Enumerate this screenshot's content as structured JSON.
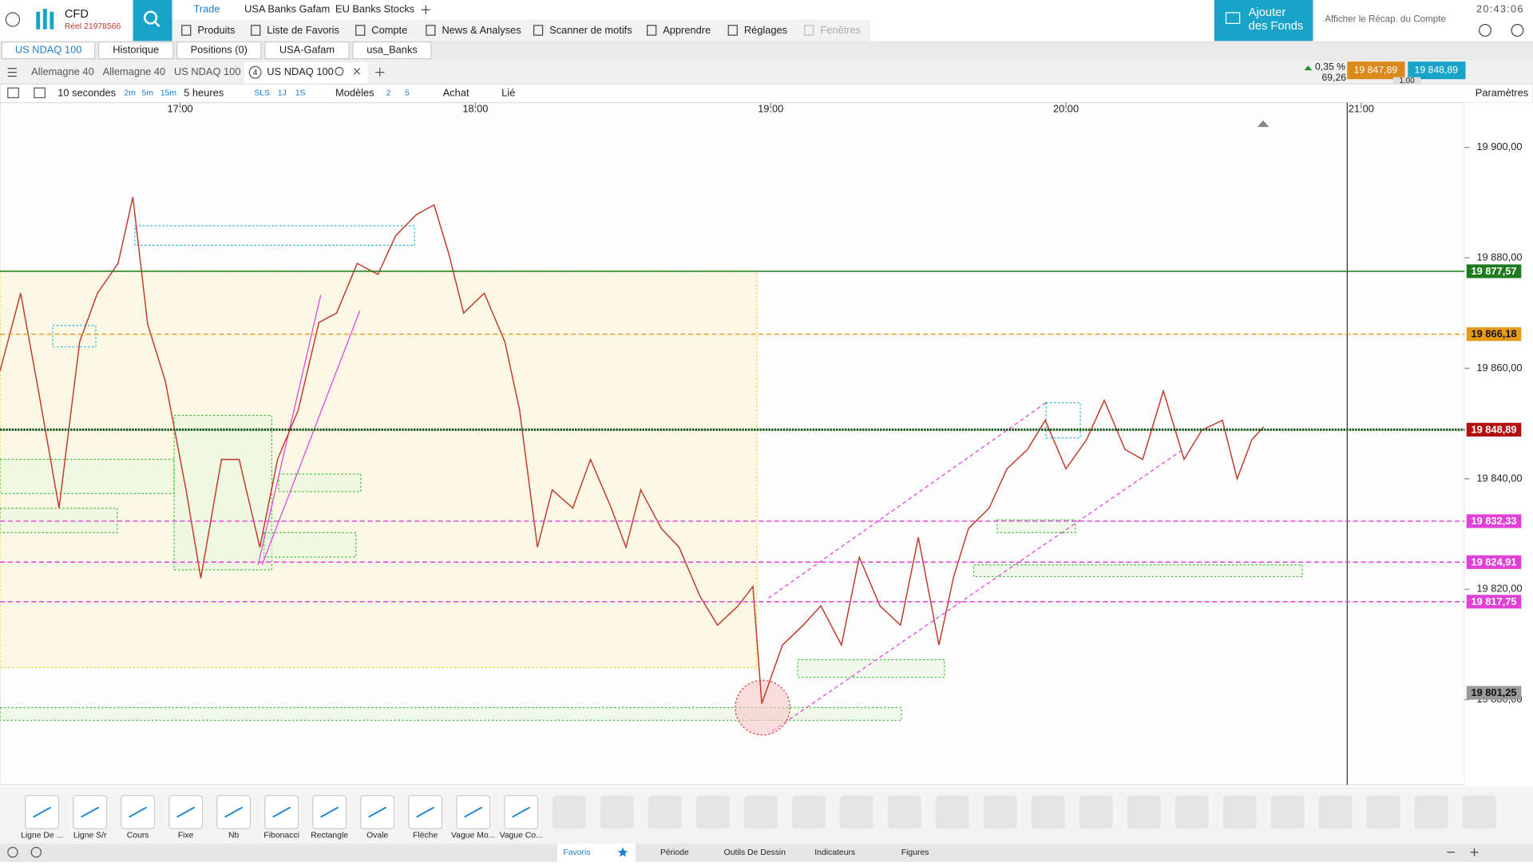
{
  "header": {
    "account_type": "CFD",
    "account_id": "Réel 21978566",
    "top_tabs": [
      "Trade",
      "USA Banks Gafam",
      "EU Banks Stocks"
    ],
    "menu": [
      "Produits",
      "Liste de Favoris",
      "Compte",
      "News & Analyses",
      "Scanner de motifs",
      "Apprendre",
      "Réglages",
      "Fenêtres"
    ],
    "add_funds": [
      "Ajouter",
      "des Fonds"
    ],
    "summary": "Afficher le Récap. du Compte",
    "time": "20:43:06"
  },
  "tabs": [
    "US NDAQ 100",
    "Historique",
    "Positions (0)",
    "USA-Gafam",
    "usa_Banks"
  ],
  "chart_tabs": [
    "Allemagne 40",
    "Allemagne 40",
    "US NDAQ 100"
  ],
  "active_tab": {
    "badge": "4",
    "label": "US NDAQ 100"
  },
  "quote": {
    "change": "0,35 %",
    "points": "69,26",
    "bid": "19 847,89",
    "ask": "19 848,89",
    "size": "1,00"
  },
  "toolbar": [
    "10 secondes",
    "2m",
    "5m",
    "15m",
    "5 heures",
    "SLS",
    "1J",
    "1S",
    "Modèles",
    "2",
    "5",
    "Achat",
    "Lié",
    "Paramètres"
  ],
  "draw_tools": [
    "Ligne De ...",
    "Ligne S/r",
    "Cours",
    "Fixe",
    "Nb",
    "Fibonacci",
    "Rectangle",
    "Ovale",
    "Flèche",
    "Vague Mo...",
    "Vague Co..."
  ],
  "bottom_tabs": [
    "Favoris",
    "Période",
    "Outils De Dessin",
    "Indicateurs",
    "Figures"
  ],
  "chart_data": {
    "type": "line",
    "color": "#c0392b",
    "x": [
      16.39,
      16.46,
      16.52,
      16.59,
      16.66,
      16.72,
      16.79,
      16.84,
      16.89,
      16.95,
      17.02,
      17.07,
      17.14,
      17.2,
      17.27,
      17.33,
      17.4,
      17.47,
      17.53,
      17.6,
      17.67,
      17.73,
      17.8,
      17.86,
      17.91,
      17.96,
      18.03,
      18.1,
      18.15,
      18.21,
      18.26,
      18.33,
      18.39,
      18.46,
      18.51,
      18.56,
      18.63,
      18.69,
      18.76,
      18.82,
      18.89,
      18.94,
      18.97,
      19.04,
      19.11,
      19.17,
      19.24,
      19.3,
      19.37,
      19.44,
      19.5,
      19.57,
      19.62,
      19.67,
      19.74,
      19.8,
      19.87,
      19.93,
      20.0,
      20.07,
      20.13,
      20.2,
      20.26,
      20.33,
      20.4,
      20.46,
      20.53,
      20.58,
      20.63,
      20.67
    ],
    "values": [
      19859.5,
      19873.6,
      19856,
      19834.7,
      19864.8,
      19873.6,
      19879,
      19891,
      19868,
      19857.7,
      19838,
      19822,
      19843.5,
      19843.5,
      19827.6,
      19843.5,
      19852.4,
      19868.3,
      19870,
      19879,
      19877,
      19884,
      19887.8,
      19889.6,
      19880.7,
      19870,
      19873.6,
      19864.8,
      19852.4,
      19827.6,
      19838,
      19834.7,
      19843.5,
      19834.7,
      19827.6,
      19838,
      19831,
      19827.6,
      19818.8,
      19813.5,
      19817,
      19820.5,
      19799.3,
      19809.9,
      19813.5,
      19817,
      19809.9,
      19825.8,
      19817,
      19813.5,
      19829.4,
      19809.9,
      19822.3,
      19831,
      19834.7,
      19841.8,
      19845.3,
      19850.6,
      19841.8,
      19847.1,
      19854.2,
      19845.3,
      19843.5,
      19855.9,
      19843.5,
      19848.8,
      19850.6,
      19840,
      19847.1,
      19849.4
    ],
    "xlim": [
      16.39,
      21.35
    ],
    "ylim": [
      19784.6,
      19908.1
    ],
    "xticks": [
      {
        "value": 17,
        "label": "17:00"
      },
      {
        "value": 18,
        "label": "18:00"
      },
      {
        "value": 19,
        "label": "19:00"
      },
      {
        "value": 20,
        "label": "20:00"
      },
      {
        "value": 21,
        "label": "21:00"
      }
    ],
    "yticks": [
      {
        "value": 19800,
        "label": "19 800,00"
      },
      {
        "value": 19820,
        "label": "19 820,00"
      },
      {
        "value": 19840,
        "label": "19 840,00"
      },
      {
        "value": 19860,
        "label": "19 860,00"
      },
      {
        "value": 19880,
        "label": "19 880,00"
      },
      {
        "value": 19900,
        "label": "19 900,00"
      }
    ],
    "levels": [
      {
        "value": 19877.57,
        "label": "19 877,57",
        "color": "#1e7a1e"
      },
      {
        "value": 19866.18,
        "label": "19 866,18",
        "color": "#e69a1c"
      },
      {
        "value": 19848.89,
        "label": "19 848,89",
        "color": "#b30f0f"
      },
      {
        "value": 19832.33,
        "label": "19 832,33",
        "color": "#e040d8"
      },
      {
        "value": 19824.91,
        "label": "19 824,91",
        "color": "#e040d8"
      },
      {
        "value": 19817.75,
        "label": "19 817,75",
        "color": "#e040d8"
      },
      {
        "value": 19801.25,
        "label": "19 801,25",
        "color": "#9a9a9a"
      }
    ],
    "grid": false
  }
}
